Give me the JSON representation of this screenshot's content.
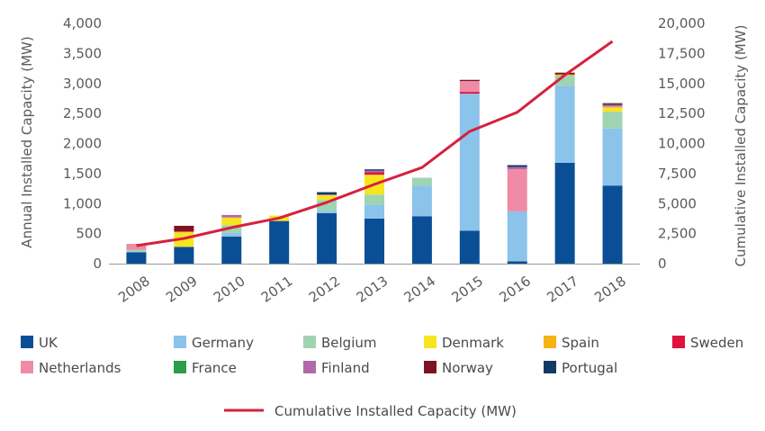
{
  "chart_data": {
    "type": "bar",
    "stacked": true,
    "categories": [
      "2008",
      "2009",
      "2010",
      "2011",
      "2012",
      "2013",
      "2014",
      "2015",
      "2016",
      "2017",
      "2018"
    ],
    "y_left": {
      "label": "Annual Installed Capacity (MW)",
      "lim": [
        0,
        4000
      ],
      "ticks": [
        0,
        500,
        1000,
        1500,
        2000,
        2500,
        3000,
        3500,
        4000
      ],
      "tick_labels": [
        "0",
        "500",
        "1,000",
        "1,500",
        "2,000",
        "2,500",
        "3,000",
        "3,500",
        "4,000"
      ]
    },
    "y_right": {
      "label": "Cumulative Installed Capacity (MW)",
      "lim": [
        0,
        20000
      ],
      "ticks": [
        0,
        2500,
        5000,
        7500,
        10000,
        12500,
        15000,
        17500,
        20000
      ],
      "tick_labels": [
        "0",
        "2,500",
        "5,000",
        "7,500",
        "10,000",
        "12,500",
        "15,000",
        "17,500",
        "20,000"
      ]
    },
    "series": [
      {
        "name": "UK",
        "color": "#0a4f95",
        "values": [
          190,
          280,
          450,
          710,
          840,
          750,
          790,
          550,
          40,
          1680,
          1300
        ]
      },
      {
        "name": "Germany",
        "color": "#8cc3ea",
        "values": [
          10,
          0,
          60,
          0,
          40,
          230,
          510,
          2280,
          830,
          1280,
          950
        ]
      },
      {
        "name": "Belgium",
        "color": "#9fd4b2",
        "values": [
          30,
          0,
          130,
          0,
          180,
          170,
          130,
          0,
          0,
          170,
          280
        ]
      },
      {
        "name": "Denmark",
        "color": "#f5e620",
        "values": [
          0,
          240,
          120,
          90,
          80,
          330,
          0,
          0,
          0,
          0,
          70
        ]
      },
      {
        "name": "Spain",
        "color": "#f6b312",
        "values": [
          0,
          10,
          10,
          0,
          0,
          0,
          0,
          0,
          0,
          20,
          0
        ]
      },
      {
        "name": "Sweden",
        "color": "#e0123f",
        "values": [
          0,
          10,
          0,
          0,
          0,
          40,
          0,
          30,
          0,
          0,
          0
        ]
      },
      {
        "name": "Netherlands",
        "color": "#ef8ba6",
        "values": [
          100,
          0,
          0,
          0,
          0,
          0,
          0,
          180,
          700,
          0,
          30
        ]
      },
      {
        "name": "France",
        "color": "#2c9d48",
        "values": [
          0,
          0,
          0,
          0,
          0,
          0,
          0,
          0,
          0,
          0,
          2
        ]
      },
      {
        "name": "Finland",
        "color": "#b06aab",
        "values": [
          0,
          0,
          40,
          0,
          10,
          30,
          0,
          0,
          40,
          0,
          10
        ]
      },
      {
        "name": "Norway",
        "color": "#7c1322",
        "values": [
          0,
          90,
          0,
          0,
          0,
          0,
          0,
          20,
          0,
          30,
          20
        ]
      },
      {
        "name": "Portugal",
        "color": "#123a62",
        "values": [
          0,
          0,
          0,
          0,
          40,
          20,
          0,
          0,
          30,
          0,
          10
        ]
      }
    ],
    "line": {
      "name": "Cumulative Installed Capacity (MW)",
      "color": "#d6203f",
      "axis": "right",
      "values": [
        1500,
        2100,
        3000,
        3800,
        5100,
        6600,
        8000,
        11000,
        12600,
        15700,
        18500
      ]
    },
    "legend_position": "bottom",
    "grid": false
  }
}
